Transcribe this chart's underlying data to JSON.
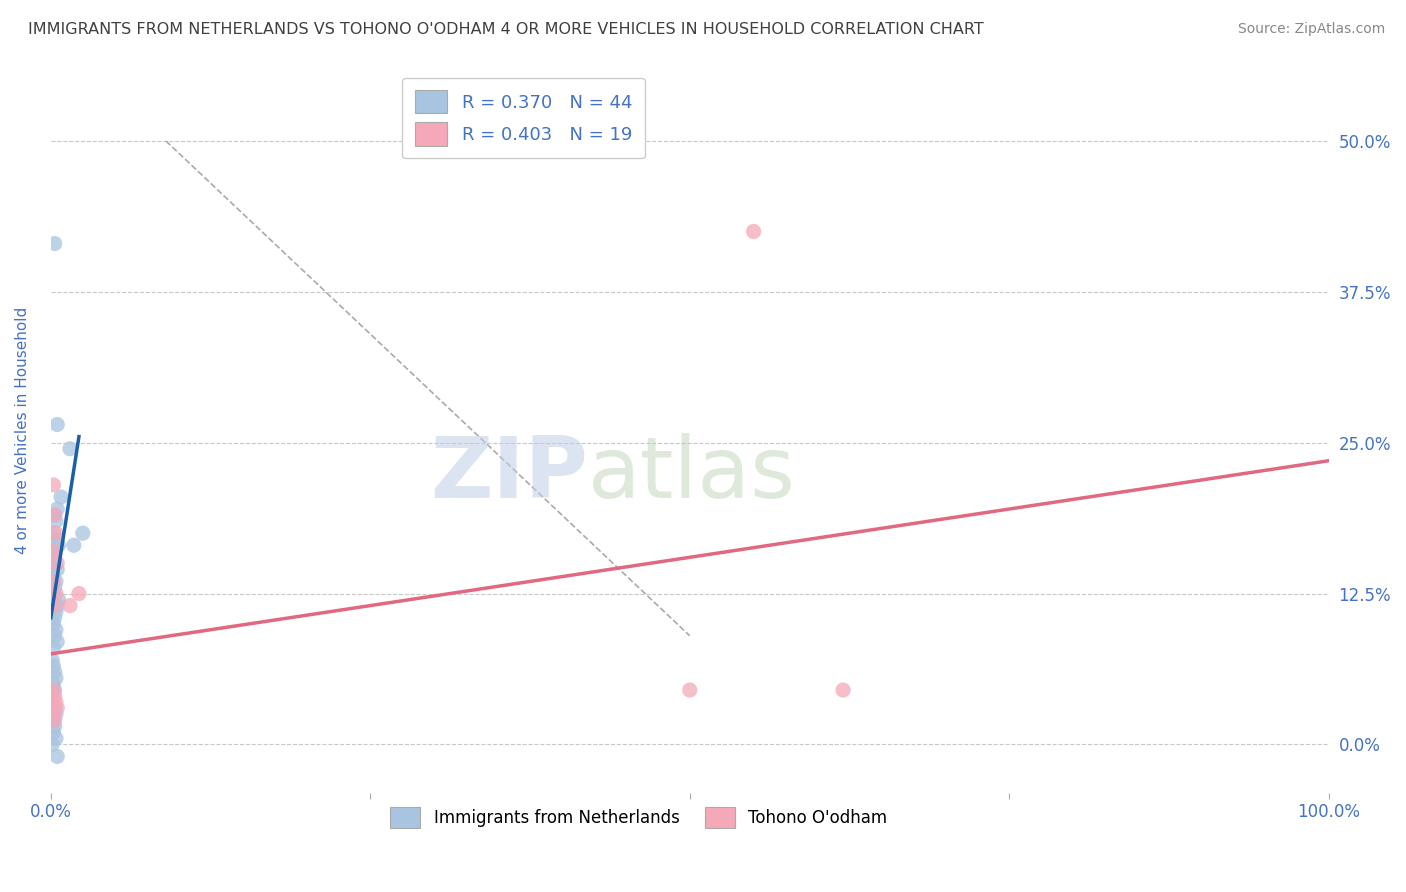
{
  "title": "IMMIGRANTS FROM NETHERLANDS VS TOHONO O'ODHAM 4 OR MORE VEHICLES IN HOUSEHOLD CORRELATION CHART",
  "source": "Source: ZipAtlas.com",
  "ylabel": "4 or more Vehicles in Household",
  "xlim": [
    0,
    1.0
  ],
  "ylim": [
    -0.04,
    0.56
  ],
  "yticks": [
    0.0,
    0.125,
    0.25,
    0.375,
    0.5
  ],
  "ytick_labels": [
    "0.0%",
    "12.5%",
    "25.0%",
    "37.5%",
    "50.0%"
  ],
  "xticks": [
    0.0,
    0.25,
    0.5,
    0.75,
    1.0
  ],
  "blue_scatter": [
    [
      0.003,
      0.415
    ],
    [
      0.005,
      0.265
    ],
    [
      0.015,
      0.245
    ],
    [
      0.008,
      0.205
    ],
    [
      0.005,
      0.195
    ],
    [
      0.003,
      0.19
    ],
    [
      0.004,
      0.185
    ],
    [
      0.002,
      0.175
    ],
    [
      0.004,
      0.17
    ],
    [
      0.006,
      0.165
    ],
    [
      0.003,
      0.16
    ],
    [
      0.002,
      0.155
    ],
    [
      0.003,
      0.15
    ],
    [
      0.005,
      0.145
    ],
    [
      0.002,
      0.14
    ],
    [
      0.004,
      0.135
    ],
    [
      0.003,
      0.13
    ],
    [
      0.001,
      0.125
    ],
    [
      0.006,
      0.12
    ],
    [
      0.005,
      0.115
    ],
    [
      0.004,
      0.11
    ],
    [
      0.003,
      0.105
    ],
    [
      0.002,
      0.1
    ],
    [
      0.004,
      0.095
    ],
    [
      0.003,
      0.09
    ],
    [
      0.005,
      0.085
    ],
    [
      0.002,
      0.08
    ],
    [
      0.025,
      0.175
    ],
    [
      0.018,
      0.165
    ],
    [
      0.001,
      0.07
    ],
    [
      0.002,
      0.065
    ],
    [
      0.003,
      0.06
    ],
    [
      0.004,
      0.055
    ],
    [
      0.002,
      0.05
    ],
    [
      0.003,
      0.045
    ],
    [
      0.001,
      0.035
    ],
    [
      0.003,
      0.03
    ],
    [
      0.004,
      0.025
    ],
    [
      0.002,
      0.02
    ],
    [
      0.003,
      0.015
    ],
    [
      0.002,
      0.01
    ],
    [
      0.004,
      0.005
    ],
    [
      0.001,
      0.0
    ],
    [
      0.005,
      -0.01
    ]
  ],
  "pink_scatter": [
    [
      0.002,
      0.215
    ],
    [
      0.003,
      0.19
    ],
    [
      0.004,
      0.175
    ],
    [
      0.003,
      0.16
    ],
    [
      0.005,
      0.15
    ],
    [
      0.002,
      0.135
    ],
    [
      0.004,
      0.125
    ],
    [
      0.003,
      0.115
    ],
    [
      0.015,
      0.115
    ],
    [
      0.022,
      0.125
    ],
    [
      0.002,
      0.045
    ],
    [
      0.003,
      0.04
    ],
    [
      0.004,
      0.035
    ],
    [
      0.005,
      0.03
    ],
    [
      0.002,
      0.025
    ],
    [
      0.003,
      0.02
    ],
    [
      0.55,
      0.425
    ],
    [
      0.5,
      0.045
    ],
    [
      0.62,
      0.045
    ]
  ],
  "blue_line_x": [
    0.0,
    0.022
  ],
  "blue_line_y": [
    0.105,
    0.255
  ],
  "pink_line_x": [
    0.0,
    1.0
  ],
  "pink_line_y": [
    0.075,
    0.235
  ],
  "diag_line_x": [
    0.09,
    0.5
  ],
  "diag_line_y": [
    0.5,
    0.09
  ],
  "blue_color": "#a8c4e0",
  "pink_color": "#f4a8b8",
  "blue_line_color": "#1a5fa8",
  "pink_line_color": "#e06880",
  "legend_blue_text": "R = 0.370   N = 44",
  "legend_pink_text": "R = 0.403   N = 19",
  "watermark_zip": "ZIP",
  "watermark_atlas": "atlas",
  "legend_label_blue": "Immigrants from Netherlands",
  "legend_label_pink": "Tohono O'odham",
  "title_color": "#404040",
  "axis_label_color": "#4472c4",
  "tick_color": "#4472c4",
  "grid_color": "#c8c8c8",
  "background_color": "#ffffff"
}
